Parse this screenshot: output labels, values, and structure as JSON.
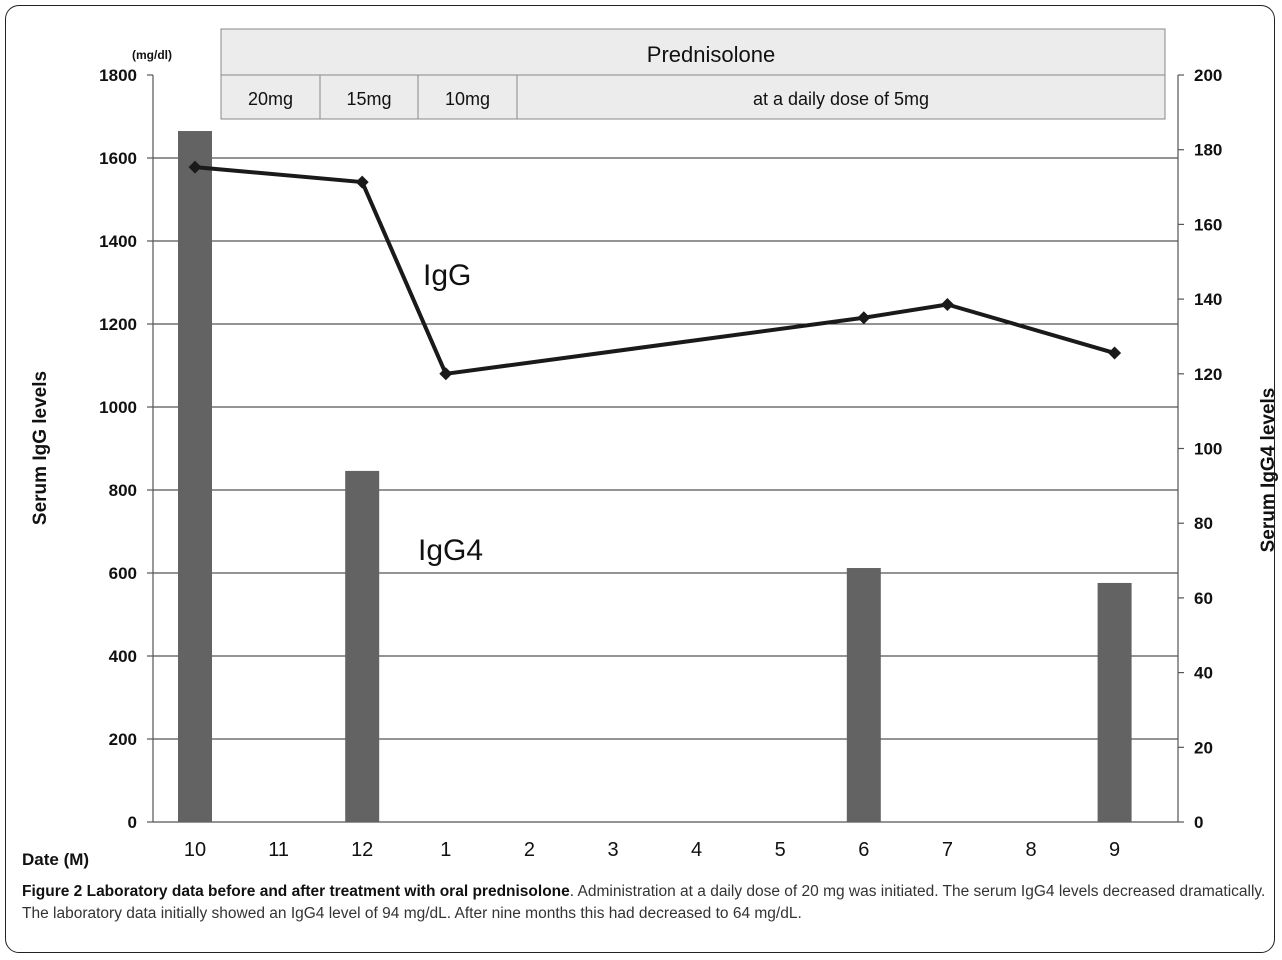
{
  "chart_data": {
    "type": "bar+line",
    "left_axis": {
      "label": "Serum IgG levels",
      "unit": "(mg/dl)",
      "min": 0,
      "max": 1800,
      "ticks": [
        0,
        200,
        400,
        600,
        800,
        1000,
        1200,
        1400,
        1600,
        1800
      ]
    },
    "right_axis": {
      "label": "Serum IgG4 levels",
      "unit": "(mg/dl)",
      "min": 0,
      "max": 200,
      "ticks": [
        0,
        20,
        40,
        60,
        80,
        100,
        120,
        140,
        160,
        180,
        200
      ]
    },
    "x_axis": {
      "label": "Date (M)",
      "categories": [
        "10",
        "11",
        "12",
        "1",
        "2",
        "3",
        "4",
        "5",
        "6",
        "7",
        "8",
        "9"
      ]
    },
    "grid": true,
    "series": [
      {
        "name": "IgG",
        "kind": "line",
        "axis": "left",
        "points": [
          {
            "x": 10,
            "y": 1578
          },
          {
            "x": 12,
            "y": 1542
          },
          {
            "x": 1,
            "y": 1080
          },
          {
            "x": 6,
            "y": 1215
          },
          {
            "x": 7,
            "y": 1247
          },
          {
            "x": 9,
            "y": 1130
          }
        ]
      },
      {
        "name": "IgG4",
        "kind": "bar",
        "axis": "right",
        "points": [
          {
            "x": 10,
            "y": 185
          },
          {
            "x": 12,
            "y": 94
          },
          {
            "x": 6,
            "y": 68
          },
          {
            "x": 9,
            "y": 64
          }
        ]
      }
    ],
    "treatment_band": {
      "title": "Prednisolone",
      "segments": [
        {
          "label": "20mg",
          "from": "10",
          "to": "11"
        },
        {
          "label": "15mg",
          "from": "11",
          "to": "12"
        },
        {
          "label": "10mg",
          "from": "12",
          "to": "1"
        },
        {
          "label": "at a daily dose of 5mg",
          "from": "1",
          "to": "9"
        }
      ]
    }
  },
  "caption": {
    "bold": "Figure 2 Laboratory data before and after treatment with oral prednisolone",
    "text": ". Administration at a daily dose of 20 mg was initiated. The serum IgG4 levels decreased dramatically. The laboratory data initially showed an IgG4 level of 94 mg/dL. After nine months this had decreased to 64 mg/dL."
  },
  "colors": {
    "bar": "#636363",
    "line": "#1a1a1a",
    "band": "#ececec",
    "grid": "#2a2a2a"
  }
}
